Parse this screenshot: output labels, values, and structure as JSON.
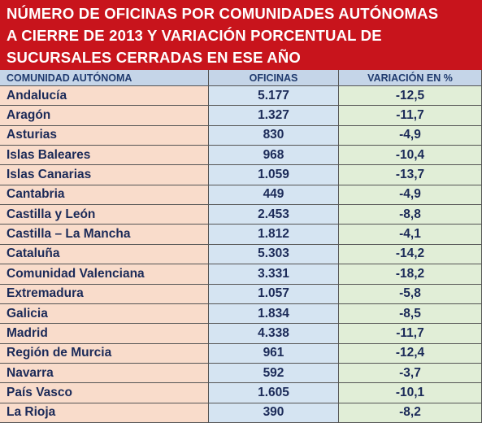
{
  "header": {
    "title_lines": [
      "NÚMERO DE OFICINAS POR COMUNIDADES AUTÓNOMAS",
      "A CIERRE DE 2013 Y VARIACIÓN PORCENTUAL DE",
      "SUCURSALES CERRADAS EN ESE AÑO"
    ]
  },
  "table": {
    "columns": [
      "COMUNIDAD AUTÓNOMA",
      "OFICINAS",
      "VARIACIÓN EN %"
    ],
    "rows": [
      [
        "Andalucía",
        "5.177",
        "-12,5"
      ],
      [
        "Aragón",
        "1.327",
        "-11,7"
      ],
      [
        "Asturias",
        "830",
        "-4,9"
      ],
      [
        "Islas Baleares",
        "968",
        "-10,4"
      ],
      [
        "Islas Canarias",
        "1.059",
        "-13,7"
      ],
      [
        "Cantabria",
        "449",
        "-4,9"
      ],
      [
        "Castilla y León",
        "2.453",
        "-8,8"
      ],
      [
        "Castilla – La Mancha",
        "1.812",
        "-4,1"
      ],
      [
        "Cataluña",
        "5.303",
        "-14,2"
      ],
      [
        "Comunidad Valenciana",
        "3.331",
        "-18,2"
      ],
      [
        "Extremadura",
        "1.057",
        "-5,8"
      ],
      [
        "Galicia",
        "1.834",
        "-8,5"
      ],
      [
        "Madrid",
        "4.338",
        "-11,7"
      ],
      [
        "Región de Murcia",
        "961",
        "-12,4"
      ],
      [
        "Navarra",
        "592",
        "-3,7"
      ],
      [
        "País Vasco",
        "1.605",
        "-10,1"
      ],
      [
        "La Rioja",
        "390",
        "-8,2"
      ]
    ]
  }
}
